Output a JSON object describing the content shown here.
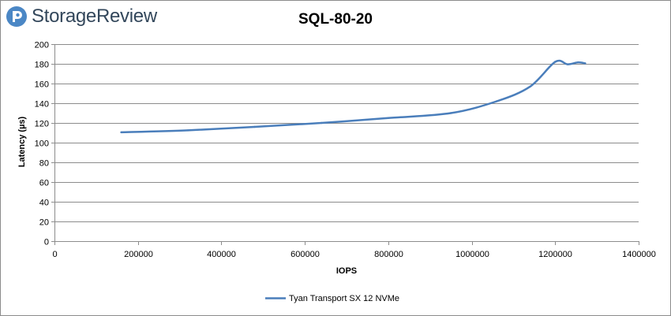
{
  "brand": {
    "name": "StorageReview"
  },
  "chart_data": {
    "type": "line",
    "title": "SQL-80-20",
    "xlabel": "IOPS",
    "ylabel": "Latency (µs)",
    "xlim": [
      0,
      1400000
    ],
    "ylim": [
      0,
      200
    ],
    "x_ticks": [
      "0",
      "200000",
      "400000",
      "600000",
      "800000",
      "1000000",
      "1200000",
      "1400000"
    ],
    "y_ticks": [
      "0",
      "20",
      "40",
      "60",
      "80",
      "100",
      "120",
      "140",
      "160",
      "180",
      "200"
    ],
    "grid": "horizontal",
    "legend_position": "bottom",
    "series": [
      {
        "name": "Tyan Transport SX 12 NVMe",
        "color": "#4a7ebb",
        "x": [
          160000,
          320000,
          480000,
          640000,
          800000,
          950000,
          1060000,
          1140000,
          1200000,
          1230000,
          1255000,
          1272000
        ],
        "y": [
          110.5,
          112.5,
          116,
          120,
          125,
          130,
          142,
          157,
          182,
          179.5,
          181.5,
          180.5
        ]
      }
    ]
  }
}
